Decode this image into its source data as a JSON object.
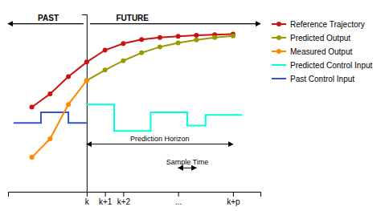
{
  "chart_data": {
    "type": "line",
    "xlim": [
      -4.3,
      9.5
    ],
    "xticks": [
      {
        "value": 0,
        "label": "k"
      },
      {
        "value": 1,
        "label": "k+1"
      },
      {
        "value": 2,
        "label": "k+2"
      },
      {
        "value": 5,
        "label": "..."
      },
      {
        "value": 8,
        "label": "k+p"
      }
    ],
    "ylim": [
      -0.22,
      1.12
    ],
    "yticks": [],
    "tick_labels": "x",
    "grid": false,
    "legend": "right",
    "series": [
      {
        "name": "Reference Trajectory",
        "color": "#cc1111",
        "marker": "o",
        "x": [
          -3,
          -2,
          -1,
          0,
          1,
          2,
          3,
          4,
          5,
          6,
          7,
          8
        ],
        "values": [
          0.42,
          0.52,
          0.65,
          0.76,
          0.85,
          0.9,
          0.93,
          0.945,
          0.955,
          0.962,
          0.967,
          0.972
        ]
      },
      {
        "name": "Predicted Output",
        "color": "#999900",
        "marker": "o",
        "x": [
          0,
          1,
          2,
          3,
          4,
          5,
          6,
          7,
          8
        ],
        "values": [
          0.62,
          0.7,
          0.77,
          0.83,
          0.875,
          0.905,
          0.928,
          0.945,
          0.958
        ]
      },
      {
        "name": "Measured Output",
        "color": "#ff8800",
        "marker": "o",
        "x": [
          -3,
          -2,
          -1,
          0
        ],
        "values": [
          0.04,
          0.18,
          0.44,
          0.62
        ]
      },
      {
        "name": "Predicted Control Input",
        "color": "#00ffdd",
        "x": [
          0.0,
          1.5,
          1.5,
          3.5,
          3.5,
          5.5,
          5.5,
          6.5,
          6.5,
          8.5
        ],
        "values": [
          0.44,
          0.44,
          0.24,
          0.24,
          0.38,
          0.38,
          0.28,
          0.28,
          0.36,
          0.36
        ]
      },
      {
        "name": "Past Control Input",
        "color": "#3355cc",
        "x": [
          -4.0,
          -2.5,
          -2.5,
          -1.0,
          -1.0,
          0.0
        ],
        "values": [
          0.3,
          0.3,
          0.38,
          0.38,
          0.3,
          0.3
        ]
      }
    ],
    "annotations": [
      {
        "text": "PAST",
        "x": -2.1,
        "y": 1.05
      },
      {
        "text": "FUTURE",
        "x": 2.5,
        "y": 1.05
      },
      {
        "text": "Prediction Horizon",
        "x": [
          0,
          8
        ],
        "y": 0.14
      },
      {
        "text": "Sample Time",
        "x": [
          5,
          6
        ],
        "y": -0.04
      }
    ]
  }
}
